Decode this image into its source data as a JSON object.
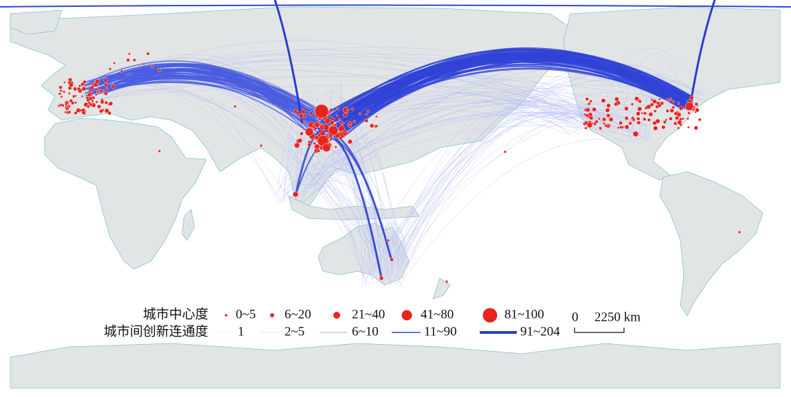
{
  "legend": {
    "node_title": "城市中心度",
    "node_classes": [
      "0~5",
      "6~20",
      "21~40",
      "41~80",
      "81~100"
    ],
    "edge_title": "城市间创新连通度",
    "edge_classes": [
      "1",
      "2~5",
      "6~10",
      "11~90",
      "91~204"
    ]
  },
  "scale_bar": {
    "labels": [
      "0",
      "2250 km"
    ]
  }
}
